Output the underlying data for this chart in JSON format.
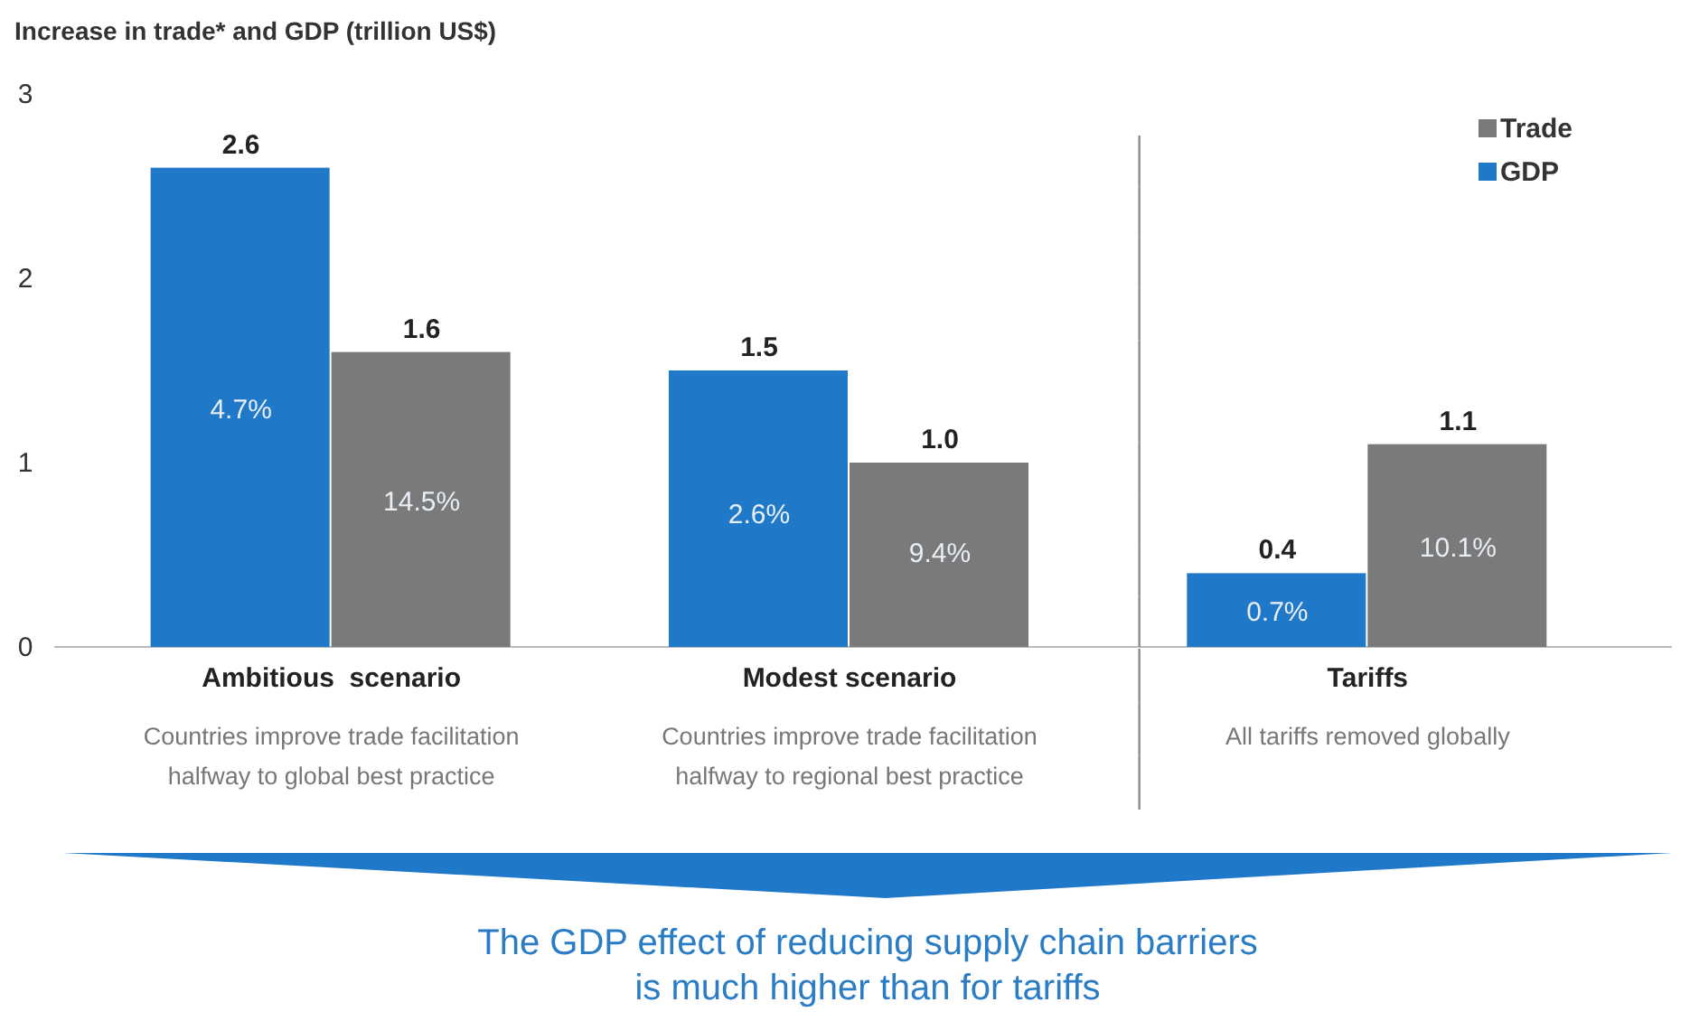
{
  "chart_data": {
    "type": "bar",
    "title": "Increase in trade* and GDP (trillion US$)",
    "categories": [
      "Ambitious  scenario",
      "Modest scenario",
      "Tariffs"
    ],
    "series": [
      {
        "name": "GDP",
        "color": "#1f78c8",
        "values": [
          2.6,
          1.5,
          0.4
        ],
        "value_labels": [
          "2.6",
          "1.5",
          "0.4"
        ]
      },
      {
        "name": "Trade",
        "color": "#7a7a7a",
        "values": [
          1.6,
          1.0,
          1.1
        ],
        "value_labels": [
          "1.6",
          "1.0",
          "1.1"
        ]
      }
    ],
    "ylim": [
      0,
      3
    ],
    "yticks": [
      0,
      1,
      2,
      3
    ],
    "grid": false,
    "legend": "top right",
    "annotations": [
      {
        "text": "4.7%",
        "x": "Ambitious  scenario",
        "y": 1.3
      },
      {
        "text": "14.5%",
        "x": "Ambitious  scenario",
        "y": 0.8
      },
      {
        "text": "2.6%",
        "x": "Modest scenario",
        "y": 0.73
      },
      {
        "text": "9.4%",
        "x": "Modest scenario",
        "y": 0.52
      },
      {
        "text": "0.7%",
        "x": "Tariffs",
        "y": 0.2
      },
      {
        "text": "10.1%",
        "x": "Tariffs",
        "y": 0.55
      },
      "Countries improve trade facilitation\nhalfway to global best practice",
      "Countries improve trade facilitation\nhalfway to regional best practice",
      "All tariffs removed globally",
      "The GDP effect of reducing supply chain barriers\nis much higher than for tariffs"
    ]
  }
}
